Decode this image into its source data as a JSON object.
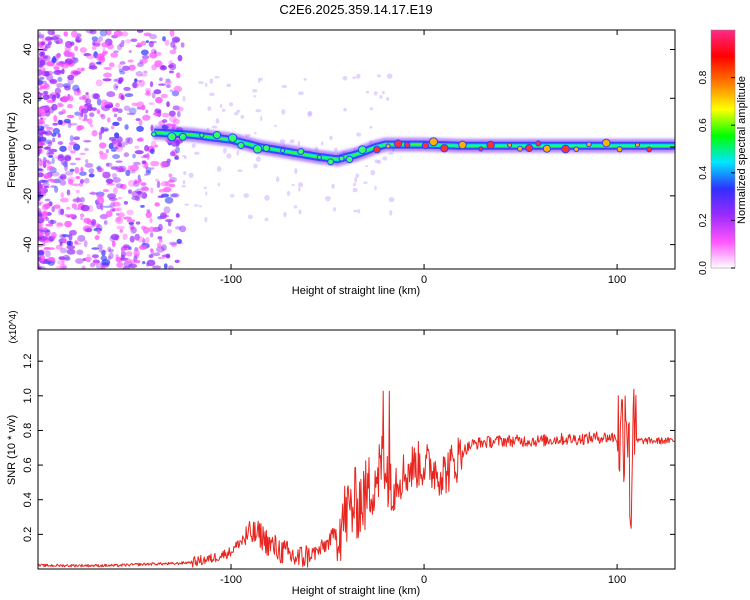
{
  "title": "C2E6.2025.359.14.17.E19",
  "chart_data": [
    {
      "type": "heatmap",
      "title": "",
      "xlabel": "Height of straight line (km)",
      "ylabel": "Frequency (Hz)",
      "xlim": [
        -200,
        130
      ],
      "ylim": [
        -50,
        48
      ],
      "xticks": [
        -100,
        0,
        100
      ],
      "yticks": [
        -40,
        -20,
        0,
        20,
        40
      ],
      "grid": false,
      "colorbar": {
        "label": "Normalized spectral amplitude",
        "range": [
          0,
          1
        ],
        "ticks": [
          "0.0",
          "0.2",
          "0.4",
          "0.6",
          "0.8"
        ],
        "colors": [
          "#ffffff",
          "#ff55ff",
          "#9a2bff",
          "#3030ff",
          "#00e6ff",
          "#00ff00",
          "#ffff00",
          "#ff7a00",
          "#ff0000",
          "#ff2a8a"
        ]
      },
      "ridge": {
        "x": [
          -140,
          -120,
          -100,
          -85,
          -70,
          -55,
          -45,
          -35,
          -25,
          -20,
          -10,
          0,
          20,
          60,
          100,
          130
        ],
        "y": [
          6,
          5,
          3,
          0,
          -2,
          -4,
          -5,
          -3,
          0,
          1,
          1,
          1,
          0.5,
          0.5,
          0.5,
          0.5
        ]
      }
    },
    {
      "type": "line",
      "title": "",
      "xlabel": "Height of straight line (km)",
      "ylabel": "SNR (10 * v/v)",
      "y_multiplier": "(x10^4)",
      "xlim": [
        -200,
        130
      ],
      "ylim": [
        0,
        1.38
      ],
      "xticks": [
        -100,
        0,
        100
      ],
      "yticks": [
        0.2,
        0.4,
        0.6,
        0.8,
        1.0,
        1.2
      ],
      "color": "#e8251e",
      "grid": false,
      "series": [
        {
          "x": [
            -200,
            -160,
            -140,
            -130,
            -120,
            -110,
            -100,
            -95,
            -90,
            -85,
            -80,
            -75,
            -70,
            -65,
            -60,
            -55,
            -50,
            -45,
            -40,
            -35,
            -30,
            -25,
            -20,
            -15,
            -10,
            -5,
            0,
            5,
            10,
            15,
            20,
            25,
            30,
            40,
            50,
            60,
            70,
            80,
            90,
            100,
            103,
            105,
            107,
            108,
            110,
            115,
            120,
            130
          ],
          "y": [
            0.02,
            0.02,
            0.03,
            0.03,
            0.04,
            0.06,
            0.1,
            0.16,
            0.2,
            0.2,
            0.14,
            0.11,
            0.08,
            0.06,
            0.08,
            0.1,
            0.15,
            0.22,
            0.32,
            0.38,
            0.42,
            0.55,
            0.6,
            0.52,
            0.55,
            0.6,
            0.6,
            0.58,
            0.55,
            0.6,
            0.68,
            0.72,
            0.73,
            0.74,
            0.74,
            0.74,
            0.75,
            0.75,
            0.76,
            0.76,
            0.78,
            1.0,
            0.3,
            0.7,
            0.74,
            0.74,
            0.74,
            0.74
          ]
        }
      ]
    }
  ]
}
